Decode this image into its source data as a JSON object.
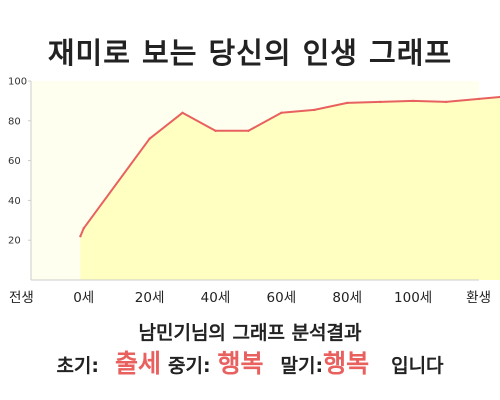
{
  "chart_data": {
    "type": "area",
    "title": "재미로 보는 당신의 인생 그래프",
    "x": [
      -0.5,
      0,
      10,
      15,
      20,
      25,
      30,
      35,
      40,
      45,
      50,
      55,
      60,
      65,
      70
    ],
    "values": [
      22,
      26,
      71,
      84,
      75,
      75,
      84,
      85.5,
      89,
      89.5,
      90,
      89.5,
      91,
      92.5,
      94
    ],
    "x_tick_values": [
      -8,
      0,
      10,
      20,
      30,
      40,
      50,
      60
    ],
    "x_tick_labels": [
      "전생",
      "0세",
      "20세",
      "40세",
      "60세",
      "80세",
      "100세",
      "환생"
    ],
    "y_ticks": [
      20,
      40,
      60,
      80,
      100
    ],
    "xlim": [
      -8,
      60
    ],
    "ylim": [
      0,
      100
    ],
    "grid": false,
    "colors": {
      "line": "#e8615f",
      "fill": "#ffffc2",
      "plot_background": "#fffff0",
      "axis": "#cccccc"
    }
  },
  "result": {
    "heading": "남민기님의 그래프 분석결과",
    "early_label": "초기:",
    "early_value": "출세",
    "middle_label": "중기:",
    "middle_value": "행복",
    "late_label": "말기:",
    "late_value": "행복",
    "ending": "입니다"
  }
}
